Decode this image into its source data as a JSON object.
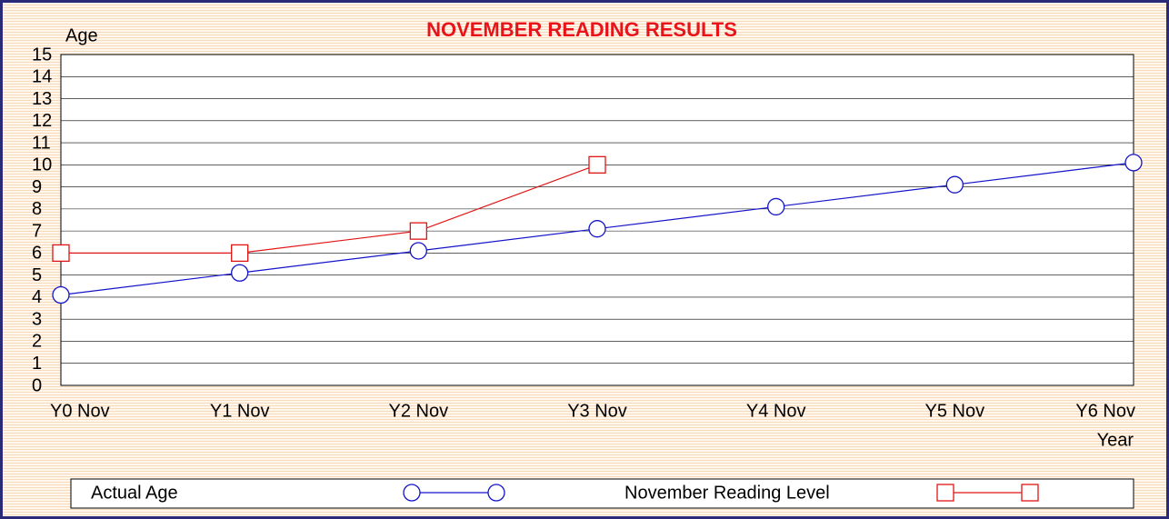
{
  "chart_data": {
    "type": "line",
    "title": "NOVEMBER READING RESULTS",
    "y_label": "Age",
    "x_label": "Year",
    "categories": [
      "Y0 Nov",
      "Y1 Nov",
      "Y2 Nov",
      "Y3 Nov",
      "Y4 Nov",
      "Y5 Nov",
      "Y6 Nov"
    ],
    "series": [
      {
        "name": "Actual Age",
        "color": "#1414c8",
        "marker": "circle",
        "values": [
          4.1,
          5.1,
          6.1,
          7.1,
          8.1,
          9.1,
          10.1
        ]
      },
      {
        "name": "November Reading Level",
        "color": "#e01414",
        "marker": "square",
        "values": [
          6,
          6,
          7,
          10,
          null,
          null,
          null
        ]
      }
    ],
    "ylim": [
      0,
      15
    ],
    "yticks": [
      0,
      1,
      2,
      3,
      4,
      5,
      6,
      7,
      8,
      9,
      10,
      11,
      12,
      13,
      14,
      15
    ],
    "grid": true,
    "legend": "bottom"
  }
}
